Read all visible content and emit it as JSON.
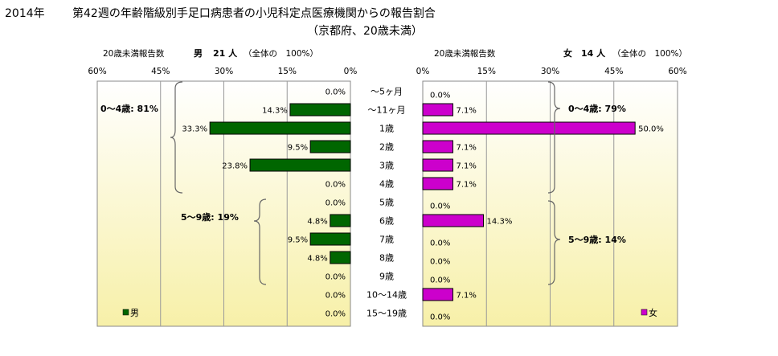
{
  "title_year": "2014年",
  "title_main": "第42週の年齢階級別手足口病患者の小児科定点医療機関からの報告割合",
  "title_sub": "（京都府、20歳未満）",
  "categories": [
    "～5ヶ月",
    "～11ヶ月",
    "1歳",
    "2歳",
    "3歳",
    "4歳",
    "5歳",
    "6歳",
    "7歳",
    "8歳",
    "9歳",
    "10～14歳",
    "15～19歳"
  ],
  "colors": {
    "male": "#006600",
    "female": "#cc00cc",
    "plot_top": "#ffffff",
    "plot_bottom": "#f7f0a8"
  },
  "left_panel": {
    "header_label": "20歳未満報告数",
    "sex_label": "男",
    "count_label": "21 人",
    "total_label": "（全体の　100%）",
    "ticks": [
      "60%",
      "45%",
      "30%",
      "15%",
      "0%"
    ],
    "legend_label": "男",
    "brace_groups": [
      {
        "label": "0～4歳: 81%"
      },
      {
        "label": "5～9歳: 19%"
      }
    ]
  },
  "right_panel": {
    "header_label": "20歳未満報告数",
    "sex_label": "女",
    "count_label": "14 人",
    "total_label": "（全体の　100%）",
    "ticks": [
      "0%",
      "15%",
      "30%",
      "45%",
      "60%"
    ],
    "legend_label": "女",
    "brace_groups": [
      {
        "label": "0～4歳: 79%"
      },
      {
        "label": "5～9歳: 14%"
      }
    ]
  },
  "chart_data": {
    "type": "bar",
    "orientation": "horizontal",
    "title": "第42週の年齢階級別手足口病患者の小児科定点医療機関からの報告割合",
    "categories": [
      "～5ヶ月",
      "～11ヶ月",
      "1歳",
      "2歳",
      "3歳",
      "4歳",
      "5歳",
      "6歳",
      "7歳",
      "8歳",
      "9歳",
      "10～14歳",
      "15～19歳"
    ],
    "xlim": [
      0,
      60
    ],
    "series": [
      {
        "name": "男",
        "values": [
          0.0,
          14.3,
          33.3,
          9.5,
          23.8,
          0.0,
          0.0,
          4.8,
          9.5,
          4.8,
          0.0,
          0.0,
          0.0
        ],
        "labels": [
          "0.0%",
          "14.3%",
          "33.3%",
          "9.5%",
          "23.8%",
          "0.0%",
          "0.0%",
          "4.8%",
          "9.5%",
          "4.8%",
          "0.0%",
          "0.0%",
          "0.0%"
        ]
      },
      {
        "name": "女",
        "values": [
          0.0,
          7.1,
          50.0,
          7.1,
          7.1,
          7.1,
          0.0,
          14.3,
          0.0,
          0.0,
          0.0,
          7.1,
          0.0
        ],
        "labels": [
          "0.0%",
          "7.1%",
          "50.0%",
          "7.1%",
          "7.1%",
          "7.1%",
          "0.0%",
          "14.3%",
          "0.0%",
          "0.0%",
          "0.0%",
          "7.1%",
          "0.0%"
        ]
      }
    ]
  }
}
